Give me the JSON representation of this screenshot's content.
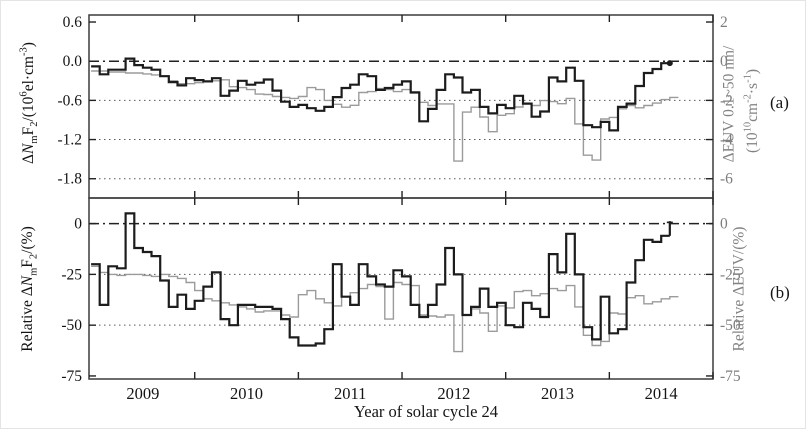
{
  "figure": {
    "panel_labels": {
      "a": "(a)",
      "b": "(b)"
    },
    "axis_titles": {
      "top_left": [
        {
          "t": "Δ"
        },
        {
          "t": "N",
          "s": "i"
        },
        {
          "t": "m",
          "s": "sub"
        },
        {
          "t": "F"
        },
        {
          "t": "2",
          "s": "sub"
        },
        {
          "t": "/(10"
        },
        {
          "t": "6",
          "s": "sup"
        },
        {
          "t": "el·cm"
        },
        {
          "t": "-3",
          "s": "sup"
        },
        {
          "t": ")"
        }
      ],
      "top_right_line1": [
        {
          "t": "ΔEUV 0.1~50 nm/"
        }
      ],
      "top_right_line2": [
        {
          "t": "(10"
        },
        {
          "t": "10",
          "s": "sup"
        },
        {
          "t": "cm"
        },
        {
          "t": "-2",
          "s": "sup"
        },
        {
          "t": "·s"
        },
        {
          "t": "-1",
          "s": "sup"
        },
        {
          "t": ")"
        }
      ],
      "bottom_left": [
        {
          "t": "Relative Δ"
        },
        {
          "t": "N",
          "s": "i"
        },
        {
          "t": "m",
          "s": "sub"
        },
        {
          "t": "F"
        },
        {
          "t": "2",
          "s": "sub"
        },
        {
          "t": "/(%)"
        }
      ],
      "bottom_right": [
        {
          "t": "Relative ΔEUV/(%)"
        }
      ]
    }
  },
  "chart_data": {
    "type": "line",
    "subtype": "monthly-step-plot",
    "x_title": "Year of solar cycle 24",
    "x_range": [
      2008.48,
      2014.5
    ],
    "x_start_decimal_year": 2008.5,
    "x_step_years": 0.0833333,
    "x_axis_tick_positions": [
      2009.5,
      2010.5,
      2011.5,
      2012.5,
      2013.5,
      2014.5
    ],
    "x_year_labels": [
      {
        "year": 2009,
        "label": "2009"
      },
      {
        "year": 2010,
        "label": "2010"
      },
      {
        "year": 2011,
        "label": "2011"
      },
      {
        "year": 2012,
        "label": "2012"
      },
      {
        "year": 2013,
        "label": "2013"
      },
      {
        "year": 2014,
        "label": "2014"
      }
    ],
    "colors": {
      "black": "#1c1c1c",
      "gray": "#9b9b9b",
      "grid": "#5a5a5a",
      "frame": "#3c3c3c"
    },
    "legend": "none",
    "grid": "horizontal dashed reference lines only",
    "panels": [
      {
        "id": "a",
        "y_range": [
          0.7075,
          -2.095
        ],
        "zero_line": 0,
        "dotted_lines": [
          -0.6,
          -1.2,
          -1.8
        ],
        "left_ticks": [
          {
            "v": 0.6,
            "label": "0.6"
          },
          {
            "v": 0.0,
            "label": "0.0"
          },
          {
            "v": -0.6,
            "label": "-0.6"
          },
          {
            "v": -1.2,
            "label": "-1.2"
          },
          {
            "v": -1.8,
            "label": "-1.8"
          }
        ],
        "right_ticks": [
          {
            "v": 2,
            "label": "2"
          },
          {
            "v": 0,
            "label": "0"
          },
          {
            "v": -2,
            "label": "-2"
          },
          {
            "v": -4,
            "label": "-4"
          },
          {
            "v": -6,
            "label": "-6"
          }
        ],
        "right_axis_to_left_scale": 0.3,
        "series": [
          {
            "name": "delta-euv",
            "color": "gray",
            "right_axis": true,
            "stroke_width": 1.4,
            "end_marker": "none",
            "values": [
              -0.5,
              -0.5,
              -0.55,
              -0.55,
              -0.6,
              -0.6,
              -0.65,
              -0.7,
              -0.75,
              -1.0,
              -1.15,
              -1.15,
              -1.1,
              -1.05,
              -1.0,
              -0.95,
              -1.3,
              -1.35,
              -1.45,
              -1.68,
              -1.7,
              -1.8,
              -1.85,
              -1.9,
              -1.8,
              -1.35,
              -1.45,
              -2.0,
              -2.2,
              -2.35,
              -2.25,
              -1.6,
              -1.55,
              -1.4,
              -1.45,
              -1.55,
              -1.45,
              -1.56,
              -2.1,
              -2.26,
              -2.18,
              -2.18,
              -5.1,
              -2.6,
              -2.35,
              -2.85,
              -3.6,
              -2.76,
              -2.68,
              -2.34,
              -2.17,
              -2.26,
              -2.01,
              -2.06,
              -2.17,
              -1.9,
              -3.2,
              -4.8,
              -5.05,
              -2.95,
              -2.87,
              -2.43,
              -2.26,
              -2.38,
              -2.26,
              -2.14,
              -1.96,
              -1.85
            ]
          },
          {
            "name": "delta-nmf2",
            "color": "black",
            "right_axis": false,
            "stroke_width": 2.2,
            "end_marker": "dot",
            "values": [
              -0.08,
              -0.2,
              -0.13,
              -0.13,
              0.04,
              -0.06,
              -0.1,
              -0.13,
              -0.23,
              -0.32,
              -0.37,
              -0.26,
              -0.29,
              -0.31,
              -0.26,
              -0.53,
              -0.45,
              -0.3,
              -0.36,
              -0.33,
              -0.28,
              -0.45,
              -0.62,
              -0.7,
              -0.67,
              -0.72,
              -0.76,
              -0.7,
              -0.55,
              -0.41,
              -0.36,
              -0.2,
              -0.23,
              -0.44,
              -0.41,
              -0.36,
              -0.31,
              -0.48,
              -0.92,
              -0.73,
              -0.44,
              -0.2,
              -0.25,
              -0.48,
              -0.44,
              -0.7,
              -0.8,
              -0.67,
              -0.72,
              -0.53,
              -0.65,
              -0.85,
              -0.77,
              -0.25,
              -0.31,
              -0.1,
              -0.3,
              -0.98,
              -1.01,
              -0.93,
              -1.06,
              -0.7,
              -0.65,
              -0.38,
              -0.18,
              -0.12,
              -0.03
            ]
          }
        ]
      },
      {
        "id": "b",
        "y_range": [
          12.6,
          -76.5
        ],
        "zero_line": 0,
        "dotted_lines": [
          -25,
          -50
        ],
        "left_ticks": [
          {
            "v": 0,
            "label": "0"
          },
          {
            "v": -25,
            "label": "-25"
          },
          {
            "v": -50,
            "label": "-50"
          },
          {
            "v": -75,
            "label": "-75"
          }
        ],
        "right_ticks": [
          {
            "v": 0,
            "label": "0"
          },
          {
            "v": -25,
            "label": "-25"
          },
          {
            "v": -50,
            "label": "-50"
          },
          {
            "v": -75,
            "label": "-75"
          }
        ],
        "right_axis_to_left_scale": 1,
        "series": [
          {
            "name": "relative-delta-euv",
            "color": "gray",
            "right_axis": true,
            "stroke_width": 1.4,
            "end_marker": "none",
            "values": [
              -21,
              -24,
              -25,
              -25.5,
              -25,
              -25,
              -25.5,
              -26,
              -25,
              -26,
              -27,
              -29,
              -33,
              -37,
              -38,
              -39,
              -40,
              -41,
              -42,
              -43.5,
              -43,
              -43,
              -45,
              -46,
              -35,
              -33,
              -37,
              -39,
              -40.5,
              -36,
              -34,
              -32,
              -30,
              -31,
              -47,
              -29,
              -30,
              -30.5,
              -45,
              -45.5,
              -46,
              -45,
              -63,
              -45,
              -42,
              -44,
              -53,
              -40.5,
              -41.5,
              -33.5,
              -33,
              -35.5,
              -34.5,
              -32,
              -33,
              -30.5,
              -41,
              -55,
              -60,
              -58,
              -44,
              -44.5,
              -36.5,
              -35.5,
              -39.5,
              -38.5,
              -37,
              -36
            ]
          },
          {
            "name": "relative-delta-nmf2",
            "color": "black",
            "right_axis": false,
            "stroke_width": 2.2,
            "end_marker": "spike-to-zero",
            "values": [
              -20,
              -40,
              -21,
              -22,
              5,
              -12,
              -14,
              -16,
              -28,
              -41,
              -35,
              -42,
              -38,
              -31,
              -24,
              -47,
              -50,
              -40,
              -40,
              -41,
              -41,
              -42,
              -47,
              -56,
              -60,
              -60,
              -59,
              -52,
              -20,
              -36,
              -40,
              -20,
              -26,
              -30,
              -31,
              -23,
              -26,
              -40,
              -46,
              -40,
              -30,
              -12,
              -25,
              -45,
              -41,
              -32,
              -41,
              -39,
              -50,
              -51,
              -39,
              -42,
              -46,
              -15,
              -24,
              -5,
              -25,
              -51,
              -57,
              -36,
              -54,
              -52,
              -29,
              -18,
              -8,
              -9,
              -6
            ]
          }
        ]
      }
    ]
  }
}
